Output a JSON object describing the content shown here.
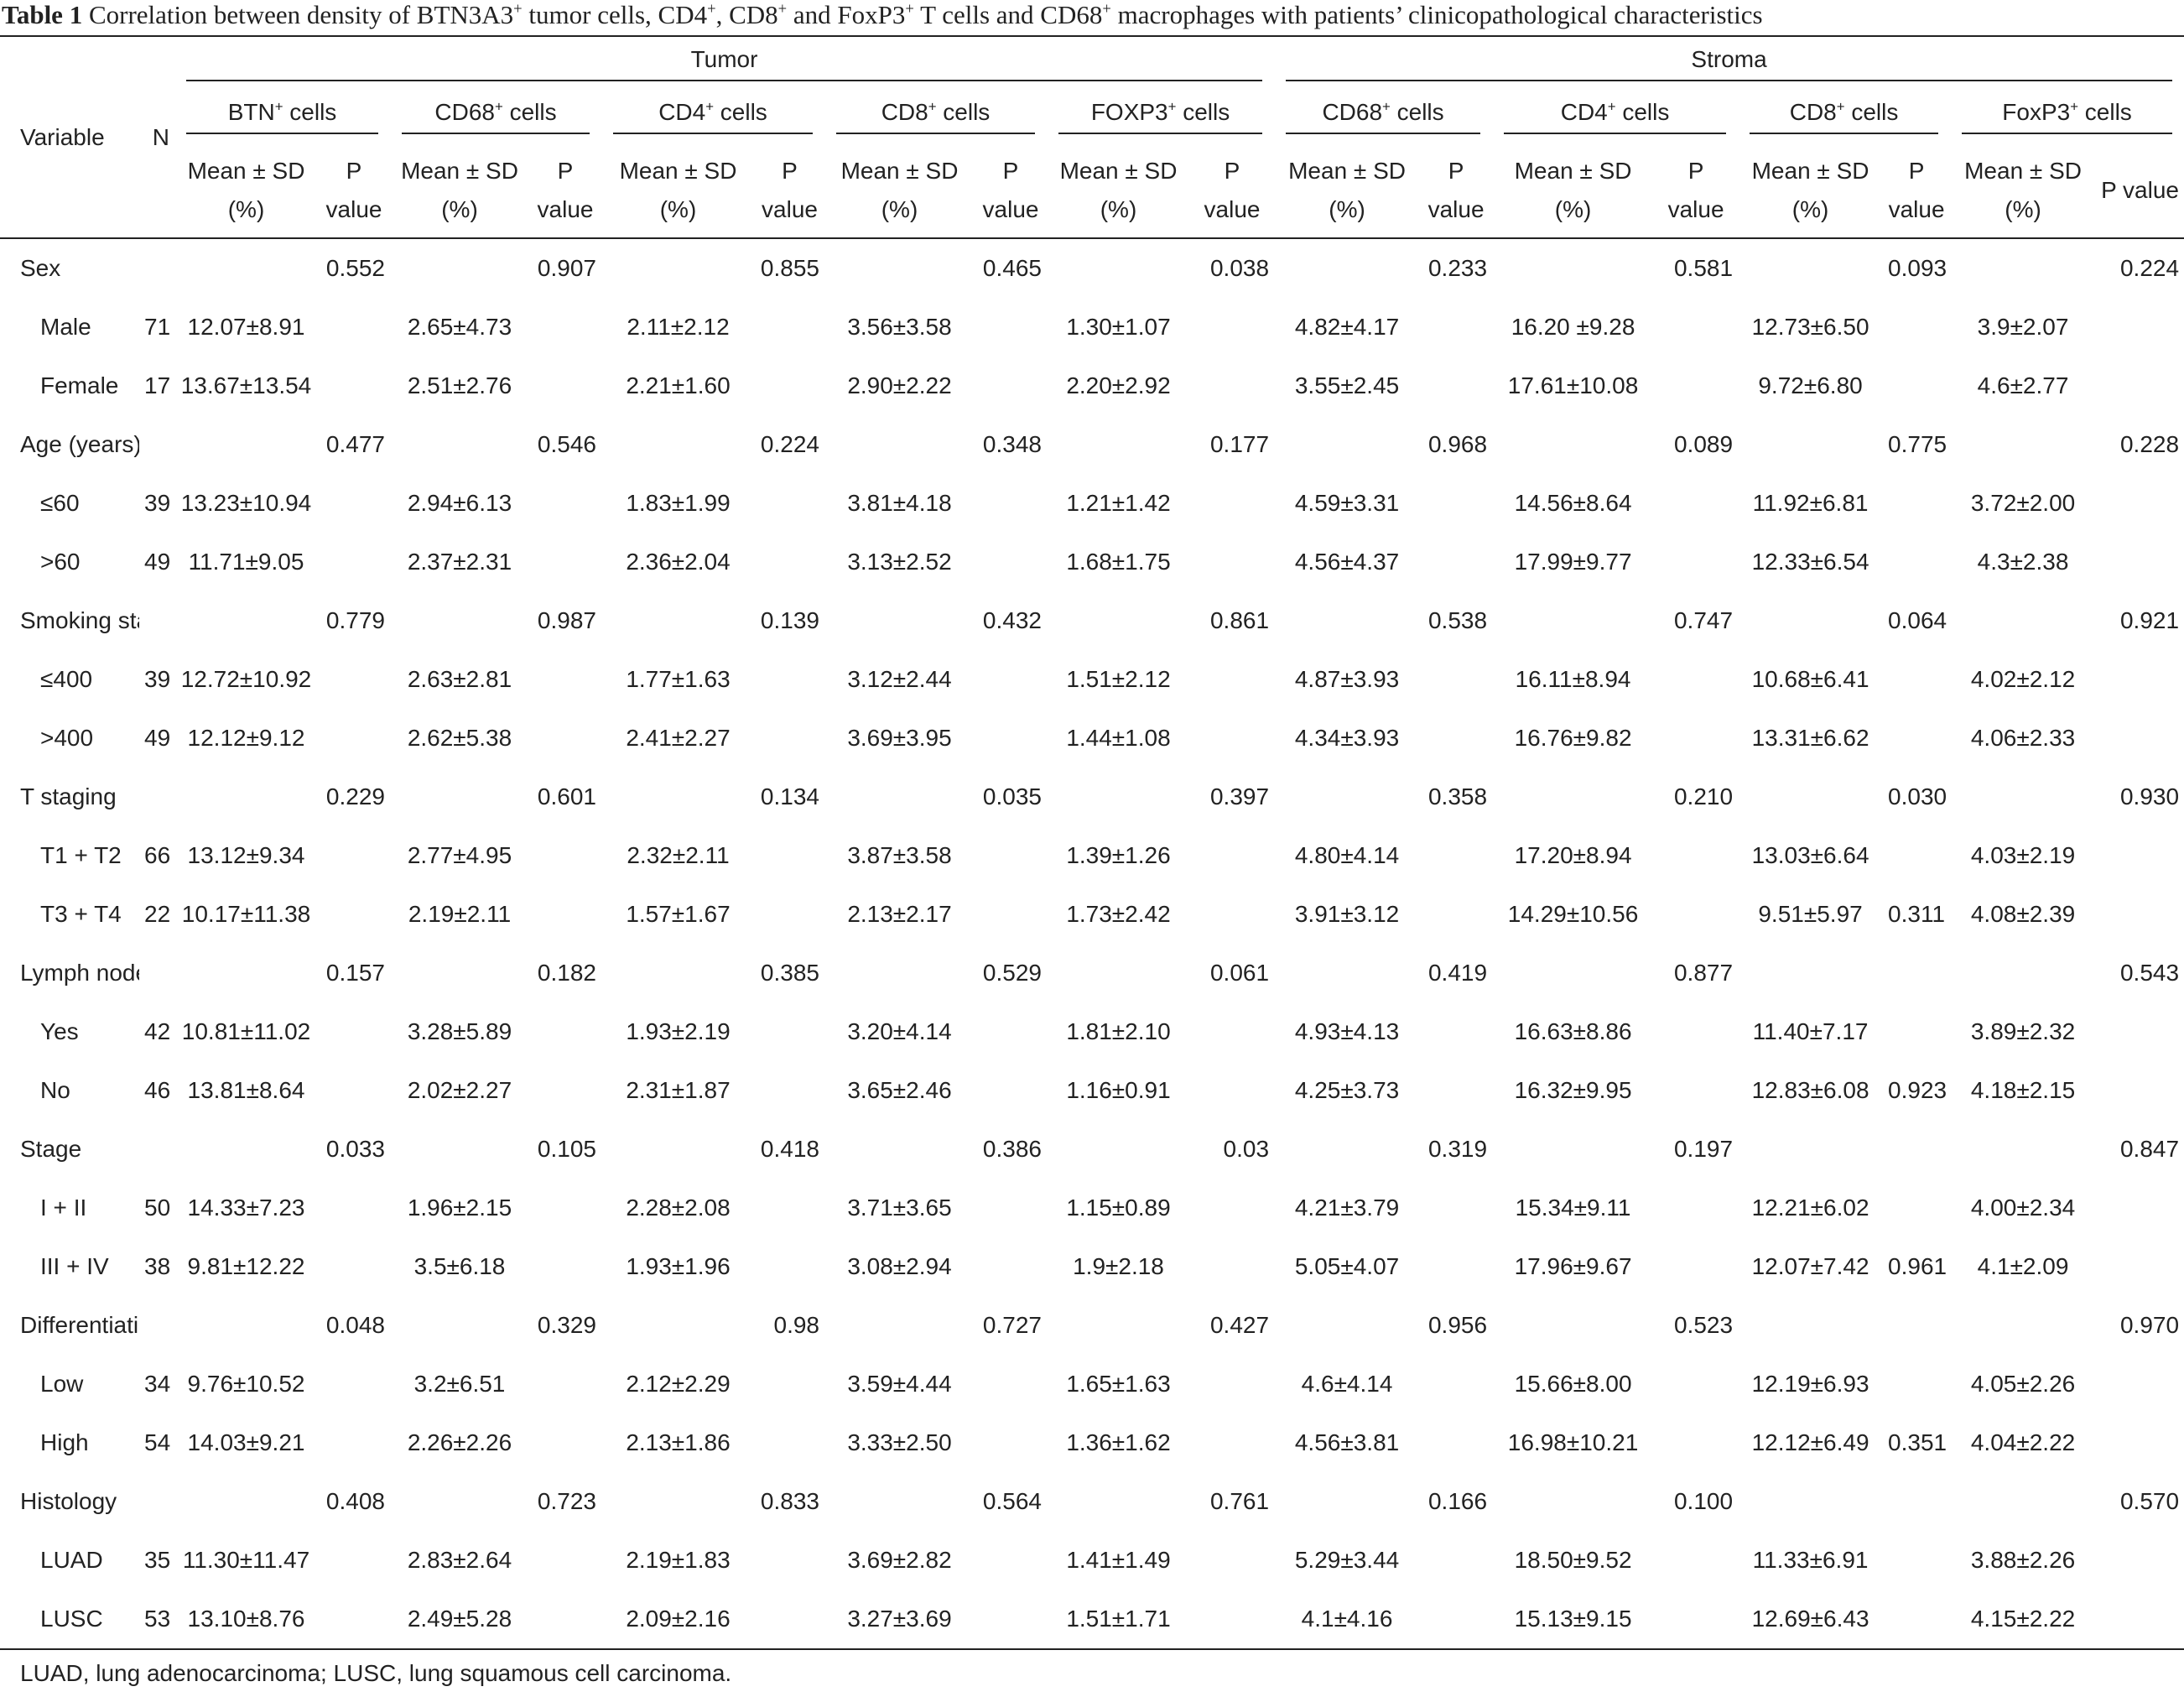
{
  "table": {
    "label": "Table 1",
    "title": [
      "Correlation between density of BTN3A3",
      "+",
      " tumor cells, CD4",
      "+",
      ", CD8",
      "+",
      " and FoxP3",
      "+",
      " T cells and CD68",
      "+",
      " macrophages with patients’ clinicopathological characteristics"
    ],
    "variable_header": "Variable",
    "n_header": "N",
    "groups": [
      {
        "name": "Tumor",
        "columns": [
          {
            "name": [
              "BTN",
              "+",
              " cells"
            ],
            "mean_header": "Mean ± SD (%)",
            "p_header": "P value"
          },
          {
            "name": [
              "CD68",
              "+",
              " cells"
            ],
            "mean_header": "Mean ± SD (%)",
            "p_header": "P value"
          },
          {
            "name": [
              "CD4",
              "+",
              " cells"
            ],
            "mean_header": "Mean ± SD (%)",
            "p_header": "P value"
          },
          {
            "name": [
              "CD8",
              "+",
              " cells"
            ],
            "mean_header": "Mean ± SD (%)",
            "p_header": "P value"
          },
          {
            "name": [
              "FOXP3",
              "+",
              " cells"
            ],
            "mean_header": "Mean ± SD (%)",
            "p_header": "P value"
          }
        ]
      },
      {
        "name": "Stroma",
        "columns": [
          {
            "name": [
              "CD68",
              "+",
              " cells"
            ],
            "mean_header": "Mean ± SD (%)",
            "p_header": "P value"
          },
          {
            "name": [
              "CD4",
              "+",
              " cells"
            ],
            "mean_header": "Mean ± SD (%)",
            "p_header": "P value"
          },
          {
            "name": [
              "CD8",
              "+",
              " cells"
            ],
            "mean_header": "Mean ± SD (%)",
            "p_header": "P value"
          },
          {
            "name": [
              "FoxP3",
              "+",
              " cells"
            ],
            "mean_header": "Mean ± SD (%)",
            "p_header": "P value"
          }
        ]
      }
    ],
    "rows": [
      {
        "variable": "Sex",
        "cells": [
          null,
          "0.552",
          null,
          "0.907",
          null,
          "0.855",
          null,
          "0.465",
          null,
          "0.038",
          null,
          "0.233",
          null,
          "0.581",
          null,
          "0.093",
          null,
          "0.224"
        ]
      },
      {
        "variable": "Male",
        "n": "71",
        "cells": [
          "12.07±8.91",
          null,
          "2.65±4.73",
          null,
          "2.11±2.12",
          null,
          "3.56±3.58",
          null,
          "1.30±1.07",
          null,
          "4.82±4.17",
          null,
          "16.20 ±9.28",
          null,
          "12.73±6.50",
          null,
          "3.9±2.07",
          null
        ]
      },
      {
        "variable": "Female",
        "n": "17",
        "cells": [
          "13.67±13.54",
          null,
          "2.51±2.76",
          null,
          "2.21±1.60",
          null,
          "2.90±2.22",
          null,
          "2.20±2.92",
          null,
          "3.55±2.45",
          null,
          "17.61±10.08",
          null,
          "9.72±6.80",
          null,
          "4.6±2.77",
          null
        ]
      },
      {
        "variable": "Age (years)",
        "cells": [
          null,
          "0.477",
          null,
          "0.546",
          null,
          "0.224",
          null,
          "0.348",
          null,
          "0.177",
          null,
          "0.968",
          null,
          "0.089",
          null,
          "0.775",
          null,
          "0.228"
        ]
      },
      {
        "variable": "≤60",
        "n": "39",
        "cells": [
          "13.23±10.94",
          null,
          "2.94±6.13",
          null,
          "1.83±1.99",
          null,
          "3.81±4.18",
          null,
          "1.21±1.42",
          null,
          "4.59±3.31",
          null,
          "14.56±8.64",
          null,
          "11.92±6.81",
          null,
          "3.72±2.00",
          null
        ]
      },
      {
        "variable": ">60",
        "n": "49",
        "cells": [
          "11.71±9.05",
          null,
          "2.37±2.31",
          null,
          "2.36±2.04",
          null,
          "3.13±2.52",
          null,
          "1.68±1.75",
          null,
          "4.56±4.37",
          null,
          "17.99±9.77",
          null,
          "12.33±6.54",
          null,
          "4.3±2.38",
          null
        ]
      },
      {
        "variable": "Smoking status",
        "cells": [
          null,
          "0.779",
          null,
          "0.987",
          null,
          "0.139",
          null,
          "0.432",
          null,
          "0.861",
          null,
          "0.538",
          null,
          "0.747",
          null,
          "0.064",
          null,
          "0.921"
        ]
      },
      {
        "variable": "≤400",
        "n": "39",
        "cells": [
          "12.72±10.92",
          null,
          "2.63±2.81",
          null,
          "1.77±1.63",
          null,
          "3.12±2.44",
          null,
          "1.51±2.12",
          null,
          "4.87±3.93",
          null,
          "16.11±8.94",
          null,
          "10.68±6.41",
          null,
          "4.02±2.12",
          null
        ]
      },
      {
        "variable": ">400",
        "n": "49",
        "cells": [
          "12.12±9.12",
          null,
          "2.62±5.38",
          null,
          "2.41±2.27",
          null,
          "3.69±3.95",
          null,
          "1.44±1.08",
          null,
          "4.34±3.93",
          null,
          "16.76±9.82",
          null,
          "13.31±6.62",
          null,
          "4.06±2.33",
          null
        ]
      },
      {
        "variable": "T staging",
        "cells": [
          null,
          "0.229",
          null,
          "0.601",
          null,
          "0.134",
          null,
          "0.035",
          null,
          "0.397",
          null,
          "0.358",
          null,
          "0.210",
          null,
          "0.030",
          null,
          "0.930"
        ]
      },
      {
        "variable": "T1 + T2",
        "n": "66",
        "cells": [
          "13.12±9.34",
          null,
          "2.77±4.95",
          null,
          "2.32±2.11",
          null,
          "3.87±3.58",
          null,
          "1.39±1.26",
          null,
          "4.80±4.14",
          null,
          "17.20±8.94",
          null,
          "13.03±6.64",
          null,
          "4.03±2.19",
          null
        ]
      },
      {
        "variable": "T3 + T4",
        "n": "22",
        "cells": [
          "10.17±11.38",
          null,
          "2.19±2.11",
          null,
          "1.57±1.67",
          null,
          "2.13±2.17",
          null,
          "1.73±2.42",
          null,
          "3.91±3.12",
          null,
          "14.29±10.56",
          null,
          "9.51±5.97",
          "0.311",
          "4.08±2.39",
          null
        ]
      },
      {
        "variable": "Lymph nodes",
        "cells": [
          null,
          "0.157",
          null,
          "0.182",
          null,
          "0.385",
          null,
          "0.529",
          null,
          "0.061",
          null,
          "0.419",
          null,
          "0.877",
          null,
          null,
          null,
          "0.543"
        ]
      },
      {
        "variable": "Yes",
        "n": "42",
        "cells": [
          "10.81±11.02",
          null,
          "3.28±5.89",
          null,
          "1.93±2.19",
          null,
          "3.20±4.14",
          null,
          "1.81±2.10",
          null,
          "4.93±4.13",
          null,
          "16.63±8.86",
          null,
          "11.40±7.17",
          null,
          "3.89±2.32",
          null
        ]
      },
      {
        "variable": "No",
        "n": "46",
        "cells": [
          "13.81±8.64",
          null,
          "2.02±2.27",
          null,
          "2.31±1.87",
          null,
          "3.65±2.46",
          null,
          "1.16±0.91",
          null,
          "4.25±3.73",
          null,
          "16.32±9.95",
          null,
          "12.83±6.08",
          "0.923",
          "4.18±2.15",
          null
        ]
      },
      {
        "variable": "Stage",
        "cells": [
          null,
          "0.033",
          null,
          "0.105",
          null,
          "0.418",
          null,
          "0.386",
          null,
          "0.03",
          null,
          "0.319",
          null,
          "0.197",
          null,
          null,
          null,
          "0.847"
        ]
      },
      {
        "variable": "I + II",
        "n": "50",
        "cells": [
          "14.33±7.23",
          null,
          "1.96±2.15",
          null,
          "2.28±2.08",
          null,
          "3.71±3.65",
          null,
          "1.15±0.89",
          null,
          "4.21±3.79",
          null,
          "15.34±9.11",
          null,
          "12.21±6.02",
          null,
          "4.00±2.34",
          null
        ]
      },
      {
        "variable": "III + IV",
        "n": "38",
        "cells": [
          "9.81±12.22",
          null,
          "3.5±6.18",
          null,
          "1.93±1.96",
          null,
          "3.08±2.94",
          null,
          "1.9±2.18",
          null,
          "5.05±4.07",
          null,
          "17.96±9.67",
          null,
          "12.07±7.42",
          "0.961",
          "4.1±2.09",
          null
        ]
      },
      {
        "variable": "Differentiation",
        "cells": [
          null,
          "0.048",
          null,
          "0.329",
          null,
          "0.98",
          null,
          "0.727",
          null,
          "0.427",
          null,
          "0.956",
          null,
          "0.523",
          null,
          null,
          null,
          "0.970"
        ]
      },
      {
        "variable": "Low",
        "n": "34",
        "cells": [
          "9.76±10.52",
          null,
          "3.2±6.51",
          null,
          "2.12±2.29",
          null,
          "3.59±4.44",
          null,
          "1.65±1.63",
          null,
          "4.6±4.14",
          null,
          "15.66±8.00",
          null,
          "12.19±6.93",
          null,
          "4.05±2.26",
          null
        ]
      },
      {
        "variable": "High",
        "n": "54",
        "cells": [
          "14.03±9.21",
          null,
          "2.26±2.26",
          null,
          "2.13±1.86",
          null,
          "3.33±2.50",
          null,
          "1.36±1.62",
          null,
          "4.56±3.81",
          null,
          "16.98±10.21",
          null,
          "12.12±6.49",
          "0.351",
          "4.04±2.22",
          null
        ]
      },
      {
        "variable": "Histology",
        "cells": [
          null,
          "0.408",
          null,
          "0.723",
          null,
          "0.833",
          null,
          "0.564",
          null,
          "0.761",
          null,
          "0.166",
          null,
          "0.100",
          null,
          null,
          null,
          "0.570"
        ]
      },
      {
        "variable": "LUAD",
        "n": "35",
        "cells": [
          "11.30±11.47",
          null,
          "2.83±2.64",
          null,
          "2.19±1.83",
          null,
          "3.69±2.82",
          null,
          "1.41±1.49",
          null,
          "5.29±3.44",
          null,
          "18.50±9.52",
          null,
          "11.33±6.91",
          null,
          "3.88±2.26",
          null
        ]
      },
      {
        "variable": "LUSC",
        "n": "53",
        "cells": [
          "13.10±8.76",
          null,
          "2.49±5.28",
          null,
          "2.09±2.16",
          null,
          "3.27±3.69",
          null,
          "1.51±1.71",
          null,
          "4.1±4.16",
          null,
          "15.13±9.15",
          null,
          "12.69±6.43",
          null,
          "4.15±2.22",
          null
        ]
      }
    ]
  },
  "footnote": "LUAD, lung adenocarcinoma; LUSC, lung squamous cell carcinoma."
}
